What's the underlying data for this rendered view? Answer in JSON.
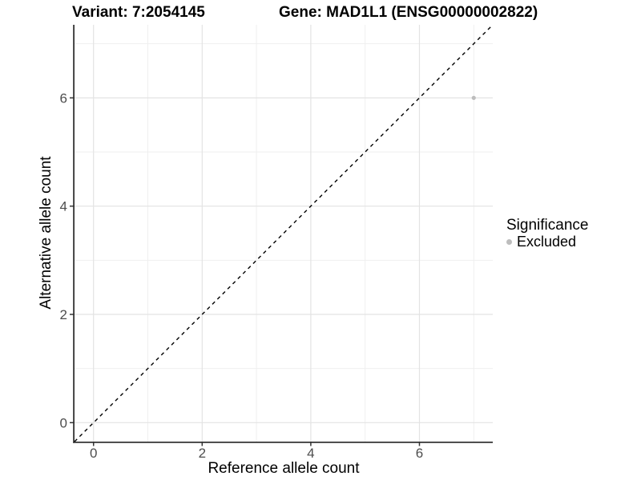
{
  "figure": {
    "title_left": "Variant: 7:2054145",
    "title_right": "Gene: MAD1L1 (ENSG00000002822)"
  },
  "legend": {
    "title": "Significance",
    "items": [
      {
        "label": "Excluded",
        "color": "#bdbdbd"
      }
    ]
  },
  "chart_data": {
    "type": "scatter",
    "title": "Variant: 7:2054145   Gene: MAD1L1 (ENSG00000002822)",
    "xlabel": "Reference allele count",
    "ylabel": "Alternative allele count",
    "xlim": [
      -0.35,
      7.35
    ],
    "ylim": [
      -0.35,
      7.35
    ],
    "x_major_ticks": [
      0,
      2,
      4,
      6
    ],
    "y_major_ticks": [
      0,
      2,
      4,
      6
    ],
    "x_minor_gridlines": [
      1,
      3,
      5,
      7
    ],
    "y_minor_gridlines": [
      1,
      3,
      5,
      7
    ],
    "grid": true,
    "legend_position": "right",
    "series": [
      {
        "name": "Excluded",
        "color": "#bdbdbd",
        "points": [
          {
            "x": 7,
            "y": 6
          }
        ]
      }
    ],
    "reference_line": {
      "kind": "identity",
      "equation": "y = x",
      "style": "dashed",
      "color": "#000000"
    }
  },
  "colors": {
    "background": "#ffffff",
    "axis_line": "#333333",
    "tick_label": "#4d4d4d",
    "grid_major": "#e3e3e3",
    "grid_minor": "#efefef",
    "point": "#bdbdbd"
  }
}
